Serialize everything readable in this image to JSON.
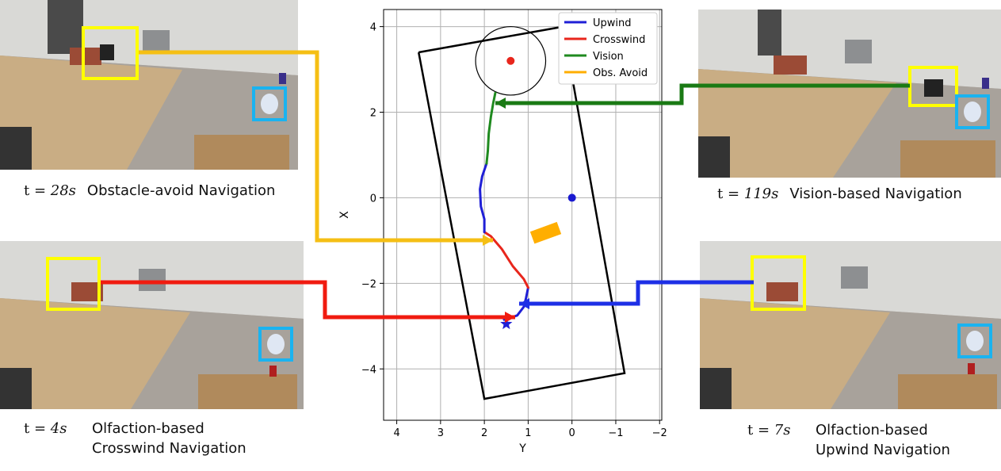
{
  "panels": {
    "top_left": {
      "time": "28",
      "unit": "s",
      "label": "Obstacle-avoid Navigation"
    },
    "top_right": {
      "time": "119",
      "unit": "s",
      "label": "Vision-based Navigation"
    },
    "bottom_left": {
      "time": "4",
      "unit": "s",
      "label_line1": "Olfaction-based",
      "label_line2": "Crosswind Navigation"
    },
    "bottom_right": {
      "time": "7",
      "unit": "s",
      "label_line1": "Olfaction-based",
      "label_line2": "Upwind Navigation"
    }
  },
  "colors": {
    "upwind": "#1f1fd6",
    "crosswind": "#e8261c",
    "vision": "#1f8a1f",
    "obs_avoid": "#ffae00",
    "target_box": "#ffff00",
    "robot_box": "#1ab3f0",
    "arrow_obstacle": "#f5bf14",
    "arrow_vision": "#1a7a14",
    "arrow_crosswind": "#f01b10",
    "arrow_upwind": "#1d2fe6"
  },
  "chart_data": {
    "type": "line",
    "xlabel": "Y",
    "ylabel": "X",
    "xlim": [
      4.3,
      -2.05
    ],
    "ylim": [
      -5.2,
      4.4
    ],
    "xticks": [
      "4",
      "3",
      "2",
      "1",
      "0",
      "−1",
      "−2"
    ],
    "yticks": [
      "4",
      "2",
      "0",
      "−2",
      "−4"
    ],
    "xtick_values": [
      4,
      3,
      2,
      1,
      0,
      -1,
      -2
    ],
    "ytick_values": [
      4,
      2,
      0,
      -2,
      -4
    ],
    "grid": true,
    "legend": {
      "position": "top-right",
      "entries": [
        "Upwind",
        "Crosswind",
        "Vision",
        "Obs. Avoid"
      ]
    },
    "arena_outline": [
      [
        3.5,
        3.4
      ],
      [
        0.2,
        4.0
      ],
      [
        -1.2,
        -4.1
      ],
      [
        2.0,
        -4.7
      ],
      [
        3.5,
        3.4
      ]
    ],
    "goal_circle": {
      "center": [
        1.4,
        3.2
      ],
      "radius": 0.8
    },
    "goal_point": [
      1.4,
      3.2
    ],
    "origin_point": [
      0.0,
      0.0
    ],
    "obstacle": {
      "center": [
        0.6,
        -0.82
      ],
      "width": 0.65,
      "height": 0.3,
      "angle": -20
    },
    "start_marker": [
      1.5,
      -2.95
    ],
    "series": [
      {
        "name": "Upwind",
        "points": [
          [
            1.55,
            -2.85
          ],
          [
            1.25,
            -2.75
          ],
          [
            1.1,
            -2.55
          ],
          [
            1.05,
            -2.35
          ],
          [
            1.0,
            -2.1
          ]
        ]
      },
      {
        "name": "Crosswind",
        "points": [
          [
            1.0,
            -2.1
          ],
          [
            1.1,
            -1.9
          ],
          [
            1.35,
            -1.6
          ],
          [
            1.6,
            -1.2
          ],
          [
            1.85,
            -0.9
          ],
          [
            2.0,
            -0.8
          ]
        ]
      },
      {
        "name": "Upwind",
        "points": [
          [
            2.0,
            -0.8
          ],
          [
            2.0,
            -0.5
          ],
          [
            2.08,
            -0.2
          ],
          [
            2.1,
            0.2
          ],
          [
            2.05,
            0.5
          ],
          [
            1.95,
            0.8
          ]
        ]
      },
      {
        "name": "Vision",
        "points": [
          [
            1.95,
            0.8
          ],
          [
            1.92,
            1.1
          ],
          [
            1.9,
            1.5
          ],
          [
            1.85,
            1.9
          ],
          [
            1.8,
            2.2
          ],
          [
            1.75,
            2.45
          ]
        ]
      }
    ]
  }
}
